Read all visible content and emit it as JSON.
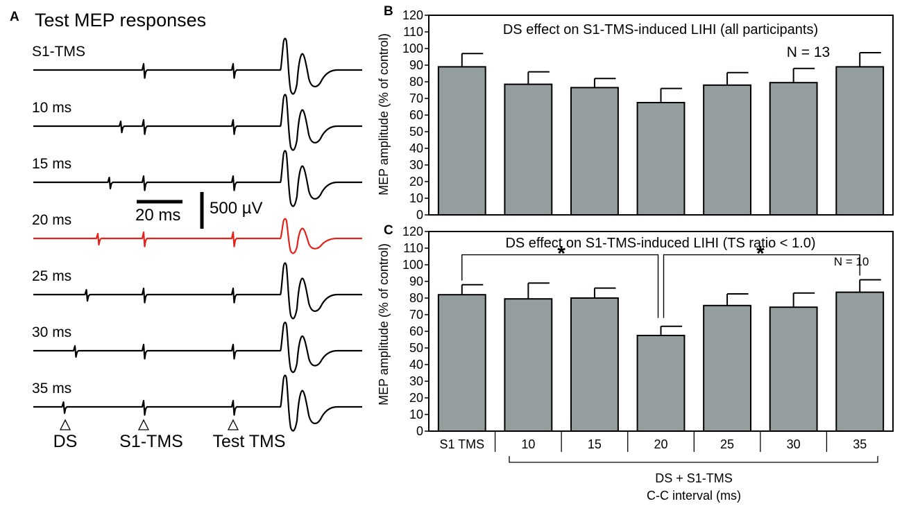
{
  "panel_a": {
    "letter": "A",
    "title": "Test MEP responses",
    "traces": [
      {
        "label": "S1-TMS",
        "ds_ms": null,
        "color": "#000000"
      },
      {
        "label": "10 ms",
        "ds_ms": 10,
        "color": "#000000"
      },
      {
        "label": "15 ms",
        "ds_ms": 15,
        "color": "#000000"
      },
      {
        "label": "20 ms",
        "ds_ms": 20,
        "color": "#e2231a"
      },
      {
        "label": "25 ms",
        "ds_ms": 25,
        "color": "#000000"
      },
      {
        "label": "30 ms",
        "ds_ms": 30,
        "color": "#000000"
      },
      {
        "label": "35 ms",
        "ds_ms": 35,
        "color": "#000000"
      }
    ],
    "time_scale_label": "20 ms",
    "amp_scale_label": "500 µV",
    "markers": [
      "DS",
      "S1-TMS",
      "Test TMS"
    ]
  },
  "panel_b": {
    "letter": "B"
  },
  "panel_c": {
    "letter": "C"
  },
  "x_group": {
    "line1": "DS + S1-TMS",
    "line2": "C-C interval (ms)"
  },
  "colors": {
    "bar": "#949e9e",
    "red": "#e2231a"
  },
  "chart_data": [
    {
      "type": "bar",
      "title": "DS effect on S1-TMS-induced LIHI (all participants)",
      "n_label": "N = 13",
      "categories": [
        "S1 TMS",
        "10",
        "15",
        "20",
        "25",
        "30",
        "35"
      ],
      "values": [
        89,
        78.5,
        76.5,
        67.5,
        78,
        79.5,
        89
      ],
      "errors": [
        8,
        7.5,
        5.5,
        8.5,
        7.5,
        8.5,
        8.5
      ],
      "ylabel": "MEP amplitude (% of control)",
      "ylim": [
        0,
        120
      ],
      "yticks": [
        0,
        10,
        20,
        30,
        40,
        50,
        60,
        70,
        80,
        90,
        100,
        110,
        120
      ]
    },
    {
      "type": "bar",
      "title": "DS effect on S1-TMS-induced LIHI (TS ratio < 1.0)",
      "n_label": "N = 10",
      "categories": [
        "S1 TMS",
        "10",
        "15",
        "20",
        "25",
        "30",
        "35"
      ],
      "values": [
        82,
        79.5,
        80,
        57.5,
        75.5,
        74.5,
        83.5
      ],
      "errors": [
        6,
        9.5,
        6,
        5.5,
        7,
        8.5,
        7.5
      ],
      "ylabel": "MEP amplitude (% of control)",
      "ylim": [
        0,
        120
      ],
      "yticks": [
        0,
        10,
        20,
        30,
        40,
        50,
        60,
        70,
        80,
        90,
        100,
        110,
        120
      ],
      "significance": [
        {
          "from": "S1 TMS",
          "to": "20",
          "label": "*"
        },
        {
          "from": "20",
          "to": "35",
          "label": "*"
        }
      ]
    }
  ]
}
